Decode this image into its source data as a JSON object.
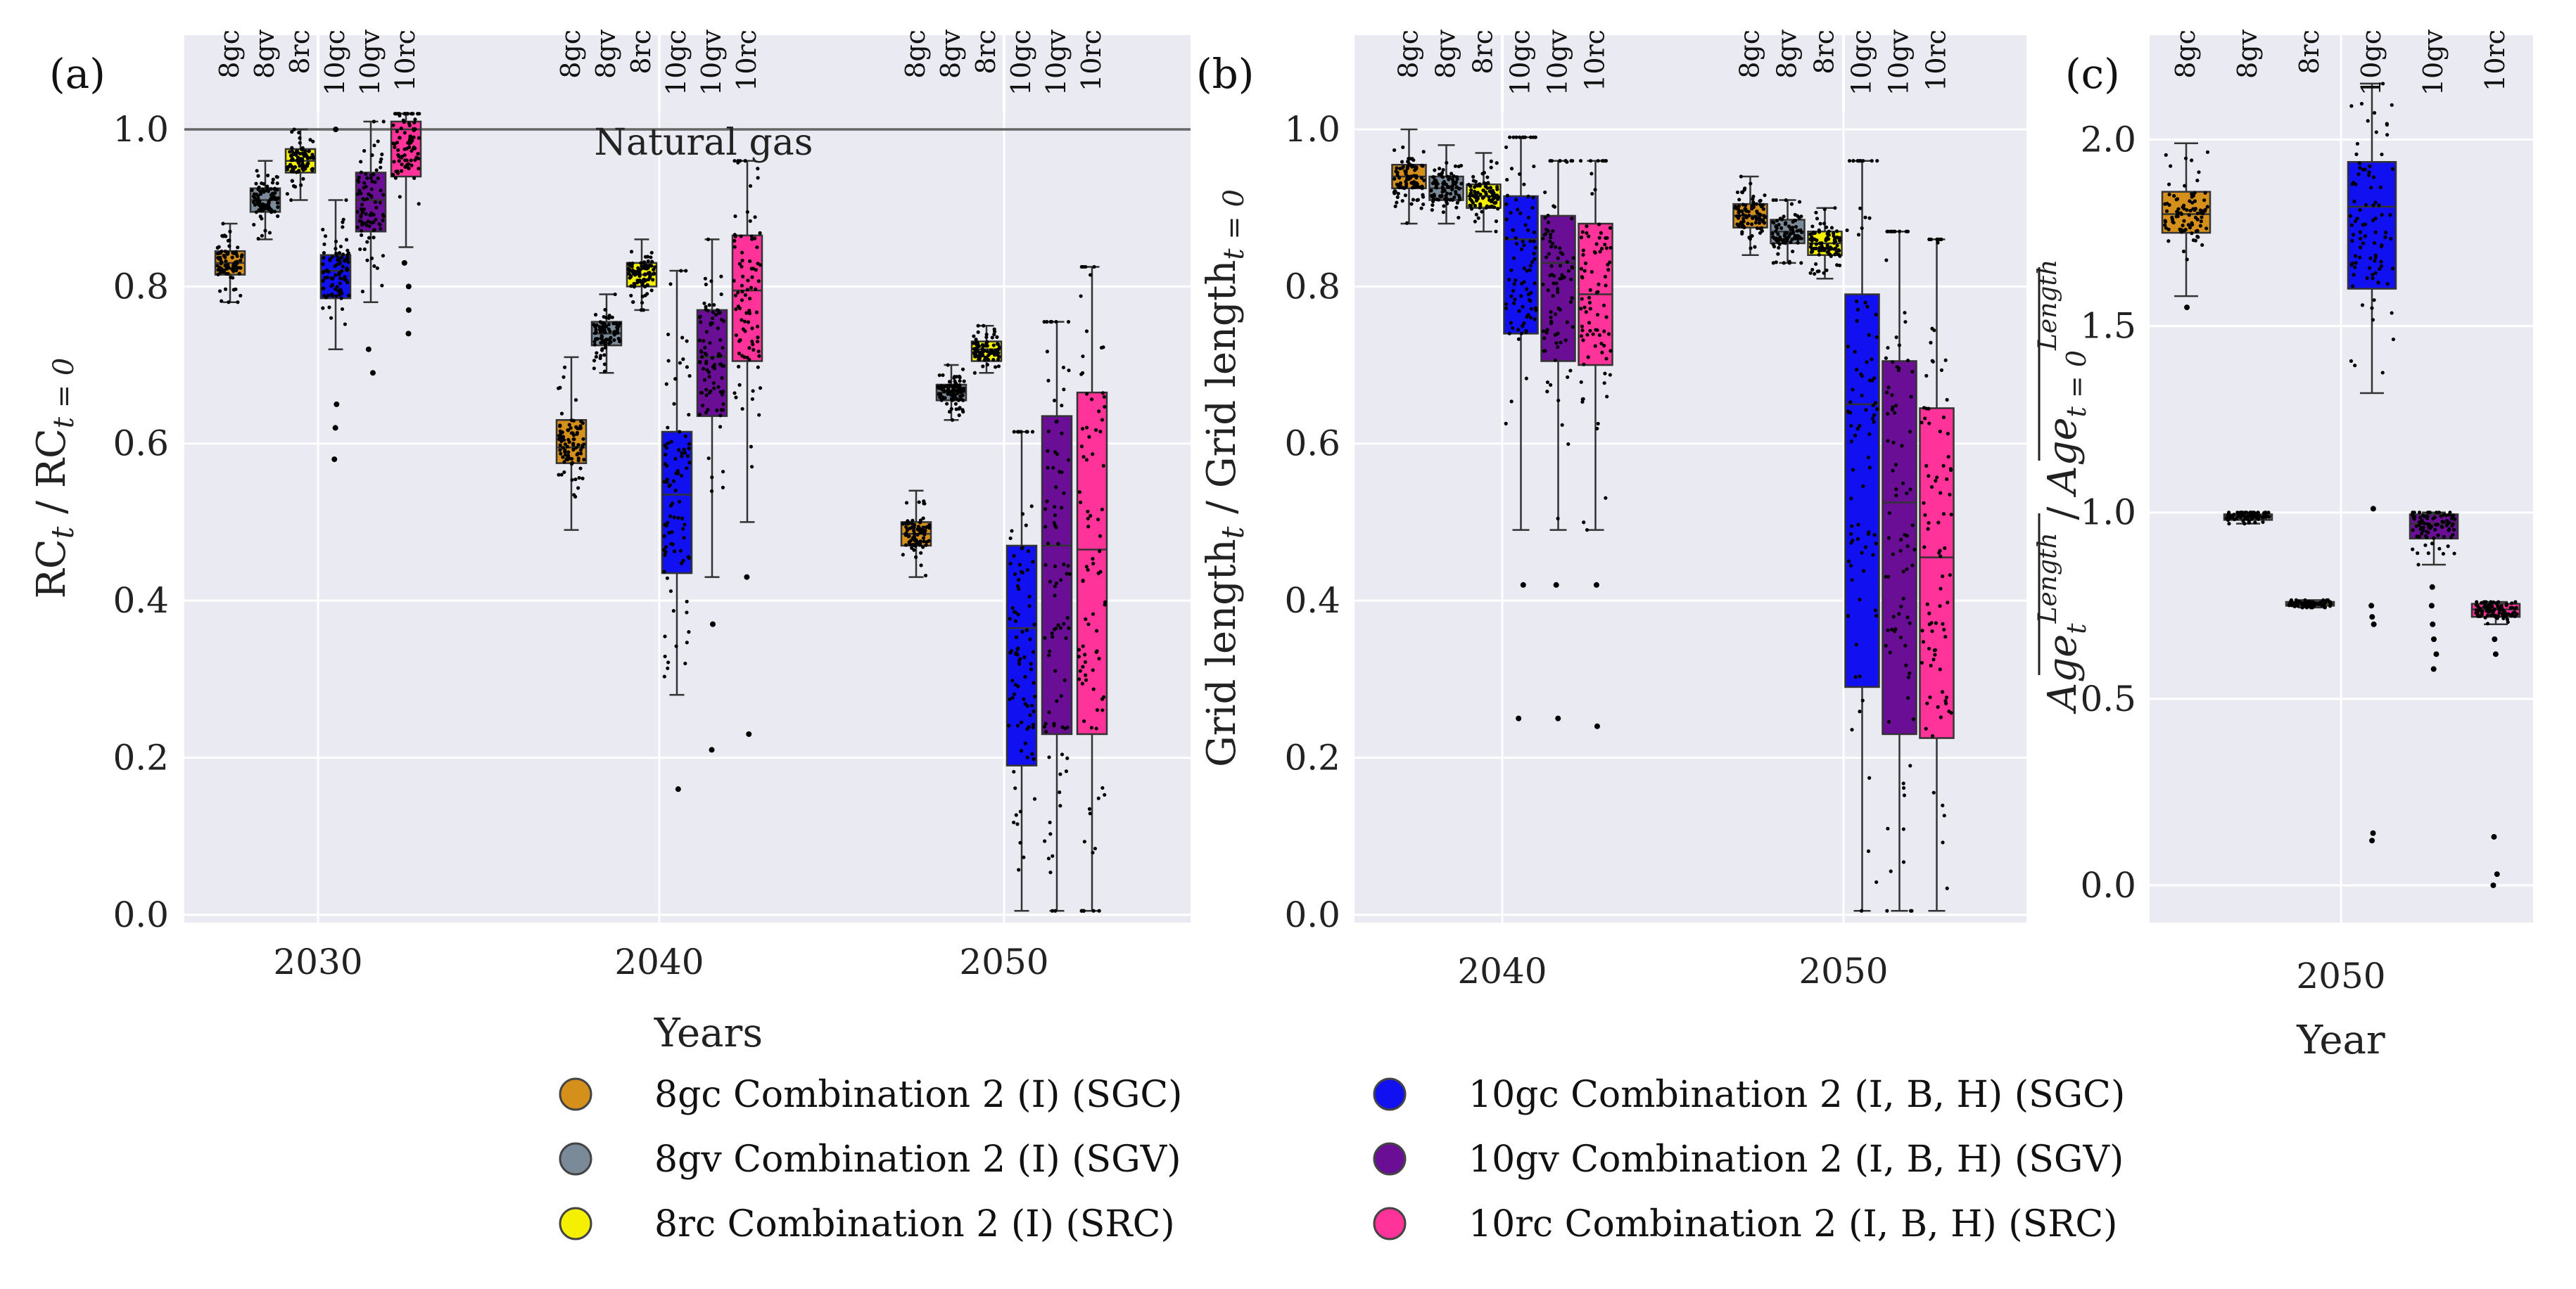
{
  "series_colors": {
    "8gc": "#D4901A",
    "8gv": "#7A8A98",
    "8rc": "#F4F000",
    "10gc": "#1010F0",
    "10gv": "#6A0E96",
    "10rc": "#FF3399"
  },
  "legend": [
    {
      "key": "8gc",
      "label": "8gc Combination 2 (I) (SGC)"
    },
    {
      "key": "8gv",
      "label": "8gv Combination 2 (I) (SGV)"
    },
    {
      "key": "8rc",
      "label": "8rc Combination 2 (I) (SRC)"
    },
    {
      "key": "10gc",
      "label": "10gc Combination 2 (I, B, H) (SGC)"
    },
    {
      "key": "10gv",
      "label": "10gv Combination 2 (I, B, H) (SGV)"
    },
    {
      "key": "10rc",
      "label": "10rc Combination 2 (I, B, H) (SRC)"
    }
  ],
  "chart_data": [
    {
      "id": "a",
      "type": "box",
      "panel_label": "(a)",
      "xlabel": "Years",
      "ylabel": "RC_t / RC_t=0",
      "ylim": [
        -0.01,
        1.12
      ],
      "yticks": [
        "0.0",
        "0.2",
        "0.4",
        "0.6",
        "0.8",
        "1.0"
      ],
      "yticks_values": [
        0.0,
        0.2,
        0.4,
        0.6,
        0.8,
        1.0
      ],
      "reference_line": {
        "value": 1.0,
        "label": "Natural gas"
      },
      "groups": [
        "2030",
        "2040",
        "2050"
      ],
      "categories": [
        "8gc",
        "8gv",
        "8rc",
        "10gc",
        "10gv",
        "10rc"
      ],
      "boxes": {
        "2030": {
          "8gc": {
            "q1": 0.815,
            "median": 0.83,
            "q3": 0.845,
            "wlo": 0.78,
            "whi": 0.88,
            "out": []
          },
          "8gv": {
            "q1": 0.895,
            "median": 0.91,
            "q3": 0.925,
            "wlo": 0.86,
            "whi": 0.96,
            "out": []
          },
          "8rc": {
            "q1": 0.945,
            "median": 0.96,
            "q3": 0.975,
            "wlo": 0.91,
            "whi": 1.0,
            "out": []
          },
          "10gc": {
            "q1": 0.785,
            "median": 0.82,
            "q3": 0.84,
            "wlo": 0.72,
            "whi": 0.91,
            "out": [
              0.58,
              0.62,
              0.65,
              1.0
            ]
          },
          "10gv": {
            "q1": 0.87,
            "median": 0.91,
            "q3": 0.945,
            "wlo": 0.78,
            "whi": 1.01,
            "out": [
              0.69,
              0.72
            ]
          },
          "10rc": {
            "q1": 0.94,
            "median": 1.0,
            "q3": 1.01,
            "wlo": 0.85,
            "whi": 1.02,
            "out": [
              0.74,
              0.77,
              0.8,
              0.83
            ]
          }
        },
        "2040": {
          "8gc": {
            "q1": 0.575,
            "median": 0.595,
            "q3": 0.63,
            "wlo": 0.49,
            "whi": 0.71,
            "out": []
          },
          "8gv": {
            "q1": 0.725,
            "median": 0.74,
            "q3": 0.755,
            "wlo": 0.69,
            "whi": 0.79,
            "out": []
          },
          "8rc": {
            "q1": 0.8,
            "median": 0.815,
            "q3": 0.83,
            "wlo": 0.77,
            "whi": 0.86,
            "out": []
          },
          "10gc": {
            "q1": 0.435,
            "median": 0.535,
            "q3": 0.615,
            "wlo": 0.28,
            "whi": 0.82,
            "out": [
              0.16
            ]
          },
          "10gv": {
            "q1": 0.635,
            "median": 0.71,
            "q3": 0.77,
            "wlo": 0.43,
            "whi": 0.86,
            "out": [
              0.21,
              0.37
            ]
          },
          "10rc": {
            "q1": 0.705,
            "median": 0.795,
            "q3": 0.865,
            "wlo": 0.5,
            "whi": 0.96,
            "out": [
              0.23,
              0.43
            ]
          }
        },
        "2050": {
          "8gc": {
            "q1": 0.47,
            "median": 0.485,
            "q3": 0.5,
            "wlo": 0.43,
            "whi": 0.54,
            "out": []
          },
          "8gv": {
            "q1": 0.655,
            "median": 0.665,
            "q3": 0.675,
            "wlo": 0.63,
            "whi": 0.7,
            "out": []
          },
          "8rc": {
            "q1": 0.705,
            "median": 0.72,
            "q3": 0.73,
            "wlo": 0.69,
            "whi": 0.75,
            "out": []
          },
          "10gc": {
            "q1": 0.19,
            "median": 0.365,
            "q3": 0.47,
            "wlo": 0.005,
            "whi": 0.615,
            "out": []
          },
          "10gv": {
            "q1": 0.23,
            "median": 0.47,
            "q3": 0.635,
            "wlo": 0.005,
            "whi": 0.755,
            "out": []
          },
          "10rc": {
            "q1": 0.23,
            "median": 0.465,
            "q3": 0.665,
            "wlo": 0.005,
            "whi": 0.825,
            "out": []
          }
        }
      }
    },
    {
      "id": "b",
      "type": "box",
      "panel_label": "(b)",
      "xlabel": "",
      "ylabel": "Grid length_t / Grid length_t=0",
      "ylim": [
        -0.01,
        1.12
      ],
      "yticks": [
        "0.0",
        "0.2",
        "0.4",
        "0.6",
        "0.8",
        "1.0"
      ],
      "yticks_values": [
        0.0,
        0.2,
        0.4,
        0.6,
        0.8,
        1.0
      ],
      "groups": [
        "2040",
        "2050"
      ],
      "categories": [
        "8gc",
        "8gv",
        "8rc",
        "10gc",
        "10gv",
        "10rc"
      ],
      "boxes": {
        "2040": {
          "8gc": {
            "q1": 0.925,
            "median": 0.94,
            "q3": 0.955,
            "wlo": 0.88,
            "whi": 1.0,
            "out": []
          },
          "8gv": {
            "q1": 0.91,
            "median": 0.925,
            "q3": 0.94,
            "wlo": 0.88,
            "whi": 0.98,
            "out": []
          },
          "8rc": {
            "q1": 0.9,
            "median": 0.915,
            "q3": 0.93,
            "wlo": 0.87,
            "whi": 0.97,
            "out": []
          },
          "10gc": {
            "q1": 0.74,
            "median": 0.86,
            "q3": 0.915,
            "wlo": 0.49,
            "whi": 0.99,
            "out": [
              0.42,
              0.25
            ]
          },
          "10gv": {
            "q1": 0.705,
            "median": 0.83,
            "q3": 0.89,
            "wlo": 0.49,
            "whi": 0.96,
            "out": [
              0.42,
              0.25
            ]
          },
          "10rc": {
            "q1": 0.7,
            "median": 0.79,
            "q3": 0.88,
            "wlo": 0.49,
            "whi": 0.96,
            "out": [
              0.42,
              0.24
            ]
          }
        },
        "2050": {
          "8gc": {
            "q1": 0.875,
            "median": 0.89,
            "q3": 0.905,
            "wlo": 0.84,
            "whi": 0.94,
            "out": []
          },
          "8gv": {
            "q1": 0.855,
            "median": 0.87,
            "q3": 0.885,
            "wlo": 0.83,
            "whi": 0.91,
            "out": []
          },
          "8rc": {
            "q1": 0.84,
            "median": 0.855,
            "q3": 0.87,
            "wlo": 0.81,
            "whi": 0.9,
            "out": []
          },
          "10gc": {
            "q1": 0.29,
            "median": 0.65,
            "q3": 0.79,
            "wlo": 0.005,
            "whi": 0.96,
            "out": []
          },
          "10gv": {
            "q1": 0.23,
            "median": 0.525,
            "q3": 0.705,
            "wlo": 0.005,
            "whi": 0.87,
            "out": []
          },
          "10rc": {
            "q1": 0.225,
            "median": 0.455,
            "q3": 0.645,
            "wlo": 0.005,
            "whi": 0.86,
            "out": []
          }
        }
      }
    },
    {
      "id": "c",
      "type": "box",
      "panel_label": "(c)",
      "xlabel": "Year",
      "ylabel": "Age_t^Length / Age_t=0^Length",
      "ylim": [
        -0.1,
        2.28
      ],
      "yticks": [
        "0.0",
        "0.5",
        "1.0",
        "1.5",
        "2.0"
      ],
      "yticks_values": [
        0.0,
        0.5,
        1.0,
        1.5,
        2.0
      ],
      "groups": [
        "2050"
      ],
      "categories": [
        "8gc",
        "8gv",
        "8rc",
        "10gc",
        "10gv",
        "10rc"
      ],
      "boxes": {
        "2050": {
          "8gc": {
            "q1": 1.75,
            "median": 1.8,
            "q3": 1.86,
            "wlo": 1.58,
            "whi": 1.99,
            "out": [
              1.55
            ]
          },
          "8gv": {
            "q1": 0.98,
            "median": 0.99,
            "q3": 0.995,
            "wlo": 0.97,
            "whi": 1.0,
            "out": []
          },
          "8rc": {
            "q1": 0.75,
            "median": 0.755,
            "q3": 0.76,
            "wlo": 0.745,
            "whi": 0.765,
            "out": []
          },
          "10gc": {
            "q1": 1.6,
            "median": 1.82,
            "q3": 1.94,
            "wlo": 1.32,
            "whi": 2.15,
            "out": [
              0.7,
              0.72,
              0.75,
              1.01,
              0.12,
              0.14
            ]
          },
          "10gv": {
            "q1": 0.93,
            "median": 0.97,
            "q3": 0.995,
            "wlo": 0.86,
            "whi": 1.0,
            "out": [
              0.58,
              0.62,
              0.66,
              0.7,
              0.75,
              0.8
            ]
          },
          "10rc": {
            "q1": 0.72,
            "median": 0.74,
            "q3": 0.755,
            "wlo": 0.7,
            "whi": 0.76,
            "out": [
              0.62,
              0.66,
              0.0,
              0.03,
              0.13
            ]
          }
        }
      }
    }
  ]
}
